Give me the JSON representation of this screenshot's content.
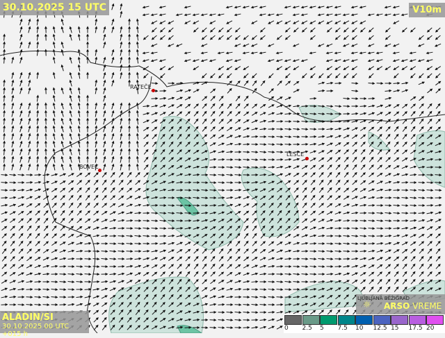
{
  "header": {
    "datetime": "30.10.2025 15 UTC",
    "variable": "V10m"
  },
  "model": {
    "name": "ALADIN/SI",
    "run": "30.10.2025 00 UTC +015 h"
  },
  "places": [
    {
      "name": "RATEČE"
    },
    {
      "name": "BOVEC"
    },
    {
      "name": "LESCE"
    }
  ],
  "branding": {
    "station": "LJUBLJANA BEŽIGRAD",
    "logo": "ARSO",
    "logo_suffix": "VREME"
  },
  "legend": {
    "unit_ticks": [
      "0",
      "2.5",
      "5",
      "7.5",
      "10",
      "12.5",
      "15",
      "17.5",
      "20"
    ],
    "colors": [
      "#666666",
      "#6a9a88",
      "#009a6e",
      "#00858a",
      "#0060b0",
      "#4c64c0",
      "#9a66cc",
      "#b85ee0",
      "#e050f0"
    ]
  }
}
